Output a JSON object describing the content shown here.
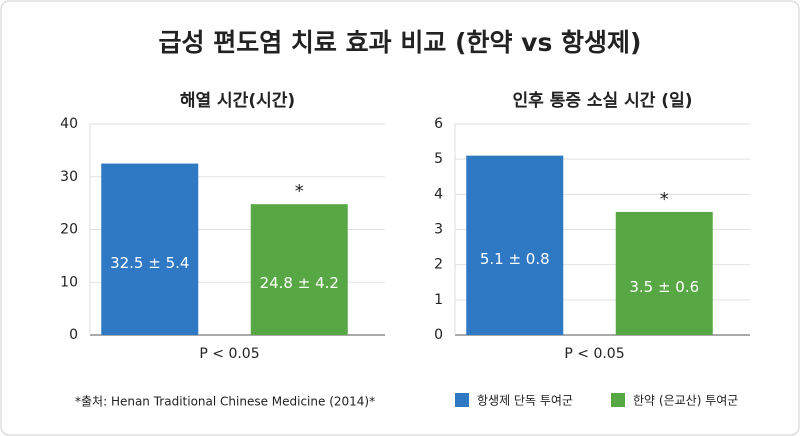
{
  "title": "급성 편도염 치료 효과 비교 (한약 vs 항생제)",
  "source": "*출처: Henan Traditional Chinese Medicine (2014)*",
  "legend": {
    "items": [
      {
        "label": "항생제 단독 투여군",
        "color": "#2f78c4"
      },
      {
        "label": "한약 (은교산) 투여군",
        "color": "#57a844"
      }
    ]
  },
  "chart_data": [
    {
      "type": "bar",
      "title": "해열 시간(시간)",
      "x_label": "P < 0.05",
      "values": [
        32.5,
        24.8
      ],
      "value_labels": [
        "32.5 ± 5.4",
        "24.8 ± 4.2"
      ],
      "significance_label": "*",
      "ylim": [
        0,
        40
      ],
      "yticks": [
        0,
        10,
        20,
        30,
        40
      ],
      "grid": true
    },
    {
      "type": "bar",
      "title": "인후 통증 소실 시간 (일)",
      "x_label": "P < 0.05",
      "values": [
        5.1,
        3.5
      ],
      "value_labels": [
        "5.1 ± 0.8",
        "3.5 ± 0.6"
      ],
      "significance_label": "*",
      "ylim": [
        0,
        6
      ],
      "yticks": [
        0,
        1,
        2,
        3,
        4,
        5,
        6
      ],
      "grid": true
    }
  ]
}
